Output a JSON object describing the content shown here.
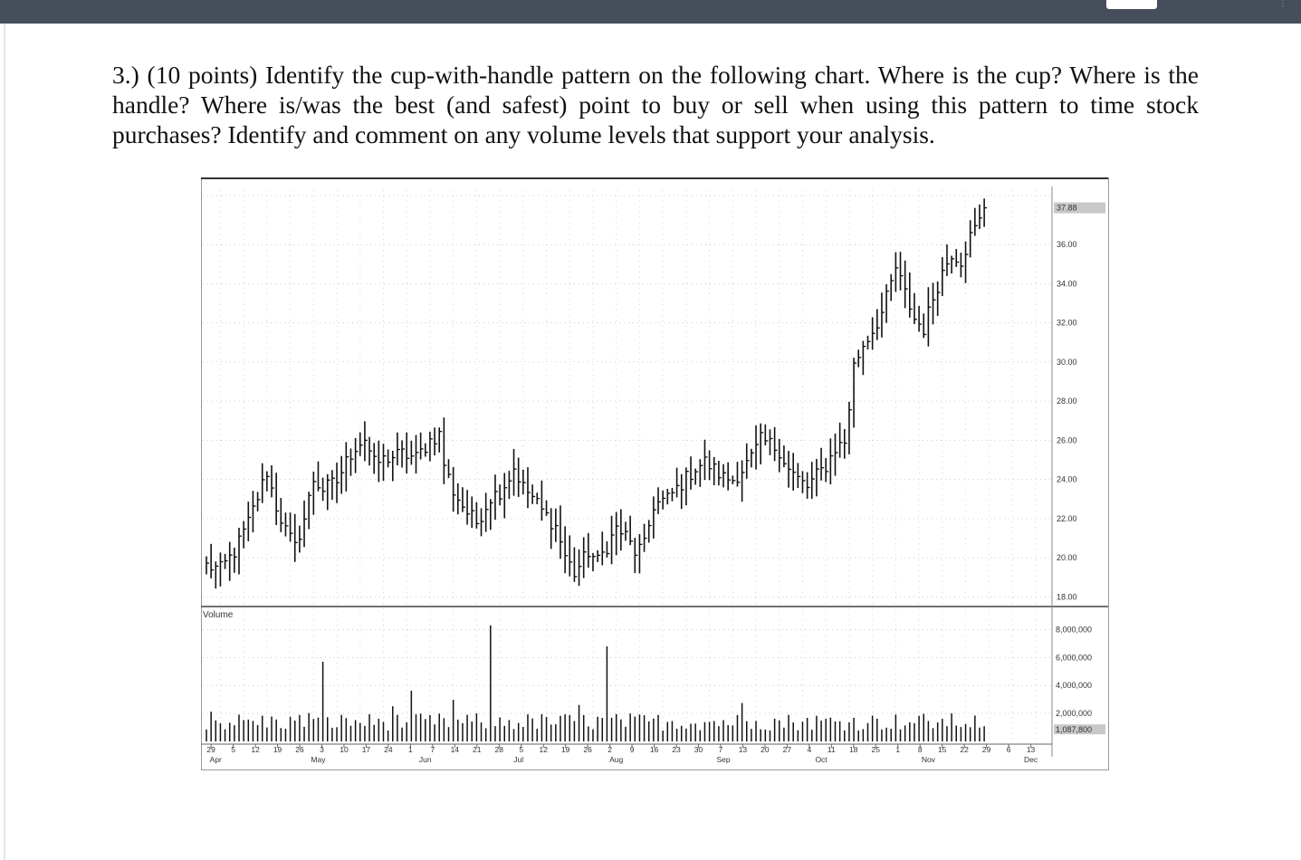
{
  "question": {
    "text": "3.) (10 points) Identify the cup-with-handle pattern on the following chart. Where is the cup? Where is the handle? Where is/was the best (and safest) point to buy or sell when using this pattern to time stock purchases? Identify and comment on any volume levels that support your analysis."
  },
  "chart_data": {
    "type": "ohlc-bar",
    "price_axis": {
      "ticks": [
        "36.00",
        "34.00",
        "32.00",
        "30.00",
        "28.00",
        "26.00",
        "24.00",
        "22.00",
        "20.00",
        "18.00"
      ],
      "tick_values": [
        36,
        34,
        32,
        30,
        28,
        26,
        24,
        22,
        20,
        18
      ],
      "last_price_label": "37.88",
      "last_price": 37.88,
      "range": [
        17.6,
        38.6
      ]
    },
    "volume_panel": {
      "label": "Volume",
      "ticks": [
        "8,000,000",
        "6,000,000",
        "4,000,000",
        "2,000,000"
      ],
      "tick_values": [
        8000000,
        6000000,
        4000000,
        2000000
      ],
      "last_volume_label": "1,087,800",
      "last_volume": 1087800,
      "range": [
        0,
        9000000
      ]
    },
    "x_axis": {
      "day_labels": [
        "29",
        "5",
        "12",
        "19",
        "26",
        "3",
        "10",
        "17",
        "24",
        "1",
        "7",
        "14",
        "21",
        "28",
        "5",
        "12",
        "19",
        "26",
        "2",
        "9",
        "16",
        "23",
        "30",
        "7",
        "13",
        "20",
        "27",
        "4",
        "11",
        "18",
        "25",
        "1",
        "8",
        "15",
        "22",
        "29",
        "6",
        "13"
      ],
      "month_labels": [
        {
          "label": "Apr",
          "day": 2
        },
        {
          "label": "May",
          "day": 24
        },
        {
          "label": "Jun",
          "day": 47
        },
        {
          "label": "Jul",
          "day": 67
        },
        {
          "label": "Aug",
          "day": 88
        },
        {
          "label": "Sep",
          "day": 111
        },
        {
          "label": "Oct",
          "day": 132
        },
        {
          "label": "Nov",
          "day": 155
        },
        {
          "label": "Dec",
          "day": 177
        }
      ]
    },
    "price_keypoints": [
      [
        0,
        19.6
      ],
      [
        3,
        19.4
      ],
      [
        6,
        20.3
      ],
      [
        9,
        21.8
      ],
      [
        11,
        23.1
      ],
      [
        13,
        24.4
      ],
      [
        15,
        22.6
      ],
      [
        17,
        21.4
      ],
      [
        19,
        20.5
      ],
      [
        21,
        22.0
      ],
      [
        23,
        24.0
      ],
      [
        25,
        23.5
      ],
      [
        28,
        23.9
      ],
      [
        30,
        24.9
      ],
      [
        32,
        25.7
      ],
      [
        34,
        26.1
      ],
      [
        36,
        24.8
      ],
      [
        39,
        25.1
      ],
      [
        42,
        25.3
      ],
      [
        45,
        25.1
      ],
      [
        48,
        26.0
      ],
      [
        50,
        26.3
      ],
      [
        51,
        24.8
      ],
      [
        53,
        23.4
      ],
      [
        56,
        22.3
      ],
      [
        58,
        21.8
      ],
      [
        61,
        23.1
      ],
      [
        63,
        23.4
      ],
      [
        65,
        24.1
      ],
      [
        66,
        24.6
      ],
      [
        68,
        23.6
      ],
      [
        70,
        23.1
      ],
      [
        72,
        22.4
      ],
      [
        75,
        21.6
      ],
      [
        77,
        20.1
      ],
      [
        79,
        19.2
      ],
      [
        82,
        20.3
      ],
      [
        84,
        19.8
      ],
      [
        86,
        20.6
      ],
      [
        88,
        21.5
      ],
      [
        90,
        21.1
      ],
      [
        92,
        20.3
      ],
      [
        94,
        20.6
      ],
      [
        96,
        22.7
      ],
      [
        99,
        23.0
      ],
      [
        102,
        23.8
      ],
      [
        105,
        24.6
      ],
      [
        107,
        24.9
      ],
      [
        109,
        24.5
      ],
      [
        111,
        24.1
      ],
      [
        113,
        24.0
      ],
      [
        115,
        24.5
      ],
      [
        117,
        25.1
      ],
      [
        119,
        26.0
      ],
      [
        121,
        25.8
      ],
      [
        123,
        25.5
      ],
      [
        125,
        24.5
      ],
      [
        127,
        24.0
      ],
      [
        129,
        23.6
      ],
      [
        131,
        24.2
      ],
      [
        133,
        24.7
      ],
      [
        135,
        25.6
      ],
      [
        137,
        25.9
      ],
      [
        138,
        27.7
      ],
      [
        139,
        29.8
      ],
      [
        141,
        30.9
      ],
      [
        143,
        31.6
      ],
      [
        145,
        32.5
      ],
      [
        147,
        34.0
      ],
      [
        148,
        34.8
      ],
      [
        150,
        33.5
      ],
      [
        152,
        32.2
      ],
      [
        154,
        31.7
      ],
      [
        156,
        33.3
      ],
      [
        158,
        34.6
      ],
      [
        160,
        35.6
      ],
      [
        162,
        35.2
      ],
      [
        164,
        36.4
      ],
      [
        166,
        37.2
      ],
      [
        167,
        37.88
      ]
    ],
    "volume_spikes": [
      {
        "day": 25,
        "volume": 5700000
      },
      {
        "day": 61,
        "volume": 8300000
      },
      {
        "day": 86,
        "volume": 6800000
      }
    ],
    "volume_baseline": 1400000
  },
  "colors": {
    "topbar": "#474e5b",
    "bars": "#111111",
    "grid": "#c9c9c9",
    "price_label_box": "#c8c8c8"
  }
}
